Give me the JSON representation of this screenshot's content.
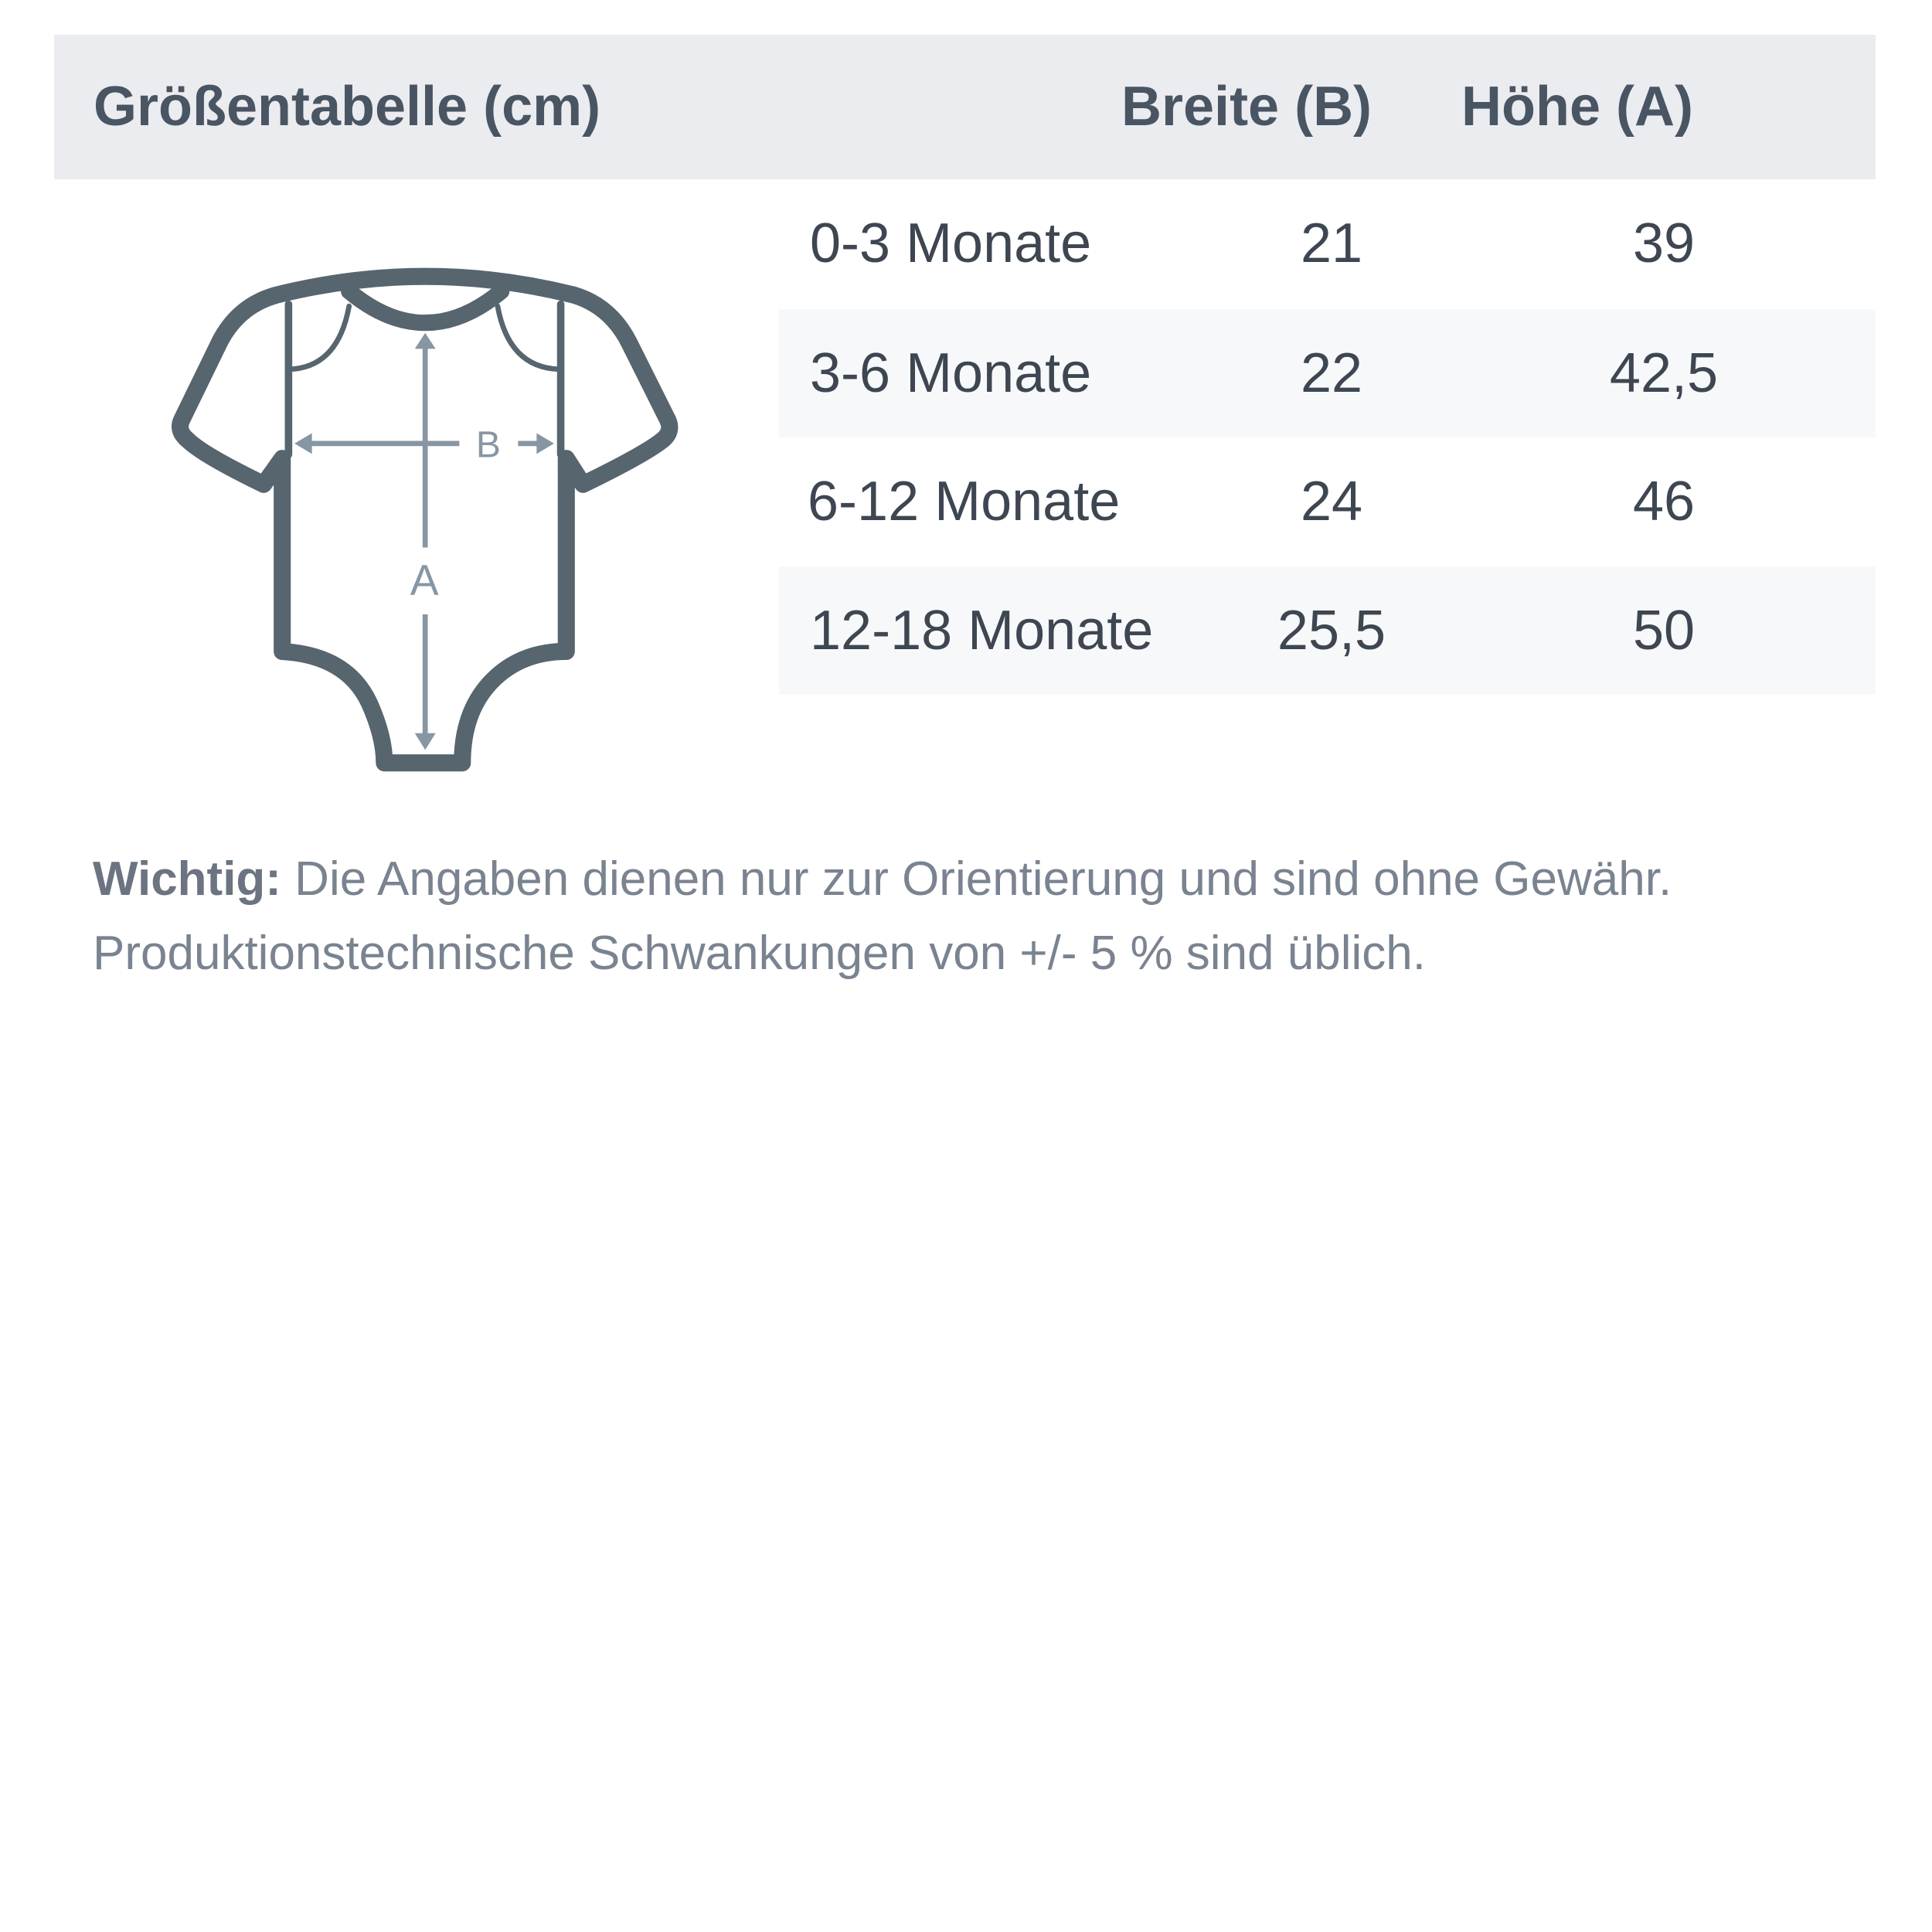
{
  "header": {
    "title": "Größentabelle (cm)",
    "col_width": "Breite (B)",
    "col_height": "Höhe (A)"
  },
  "illustration": {
    "label_width": "B",
    "label_height": "A",
    "outline_color": "#56656e",
    "arrow_color": "#8796a3"
  },
  "rows": [
    {
      "size": "0-3 Monate",
      "width": "21",
      "height": "39"
    },
    {
      "size": "3-6 Monate",
      "width": "22",
      "height": "42,5"
    },
    {
      "size": "6-12 Monate",
      "width": "24",
      "height": "46"
    },
    {
      "size": "12-18 Monate",
      "width": "25,5",
      "height": "50"
    }
  ],
  "note": {
    "label": "Wichtig:",
    "text": " Die Angaben dienen nur zur Orientierung und sind ohne Gewähr. Produktionstechnische Schwankungen von +/- 5 % sind üblich."
  }
}
